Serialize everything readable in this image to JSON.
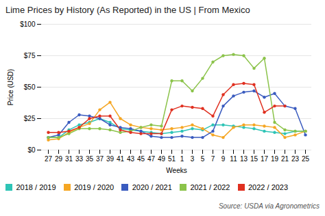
{
  "chart_data": {
    "type": "line",
    "title": "Lime Prices by History (As Reported) in the US | From Mexico",
    "xlabel": "Weeks",
    "ylabel": "Price (USD)",
    "caption": "Source: USDA via Agronometrics",
    "categories": [
      "27",
      "29",
      "31",
      "33",
      "35",
      "37",
      "39",
      "41",
      "43",
      "45",
      "47",
      "49",
      "51",
      "1",
      "3",
      "5",
      "7",
      "9",
      "11",
      "13",
      "15",
      "17",
      "19",
      "21",
      "23",
      "25"
    ],
    "ylim": [
      0,
      100
    ],
    "yticks": [
      {
        "value": 0,
        "label": "$0"
      },
      {
        "value": 25,
        "label": "$25"
      },
      {
        "value": 50,
        "label": "$50"
      },
      {
        "value": 75,
        "label": "$75"
      },
      {
        "value": 100,
        "label": "$100"
      }
    ],
    "grid": true,
    "legend": "bottom",
    "marker": "circle",
    "series": [
      {
        "name": "2018 / 2019",
        "color": "#2ec4b6",
        "values": [
          10,
          10,
          16,
          20,
          22,
          25,
          22,
          17,
          16,
          15,
          14,
          13,
          14,
          15,
          17,
          16,
          20,
          20,
          19,
          18,
          17,
          15,
          14,
          13,
          15,
          15
        ]
      },
      {
        "name": "2019 / 2020",
        "color": "#f5a623",
        "values": [
          8,
          9,
          14,
          18,
          21,
          32,
          38,
          25,
          20,
          18,
          17,
          16,
          17,
          18,
          20,
          17,
          12,
          10,
          18,
          20,
          20,
          19,
          18,
          10,
          12,
          15
        ]
      },
      {
        "name": "2020 / 2021",
        "color": "#3a5bbf",
        "values": [
          10,
          12,
          22,
          28,
          27,
          25,
          20,
          18,
          17,
          15,
          11,
          10,
          10,
          11,
          10,
          10,
          15,
          35,
          43,
          46,
          47,
          42,
          45,
          35,
          33,
          12
        ]
      },
      {
        "name": "2021 / 2022",
        "color": "#8bc34a",
        "values": [
          10,
          10,
          13,
          17,
          17,
          17,
          16,
          14,
          15,
          18,
          20,
          19,
          55,
          55,
          47,
          57,
          70,
          75,
          76,
          75,
          65,
          73,
          22,
          16,
          15,
          15
        ]
      },
      {
        "name": "2022 / 2023",
        "color": "#e03020",
        "values": [
          14,
          14,
          15,
          18,
          25,
          27,
          27,
          16,
          14,
          13,
          13,
          13,
          32,
          35,
          34,
          33,
          27,
          44,
          52,
          53,
          52,
          30,
          35,
          35,
          null,
          null
        ]
      }
    ]
  }
}
